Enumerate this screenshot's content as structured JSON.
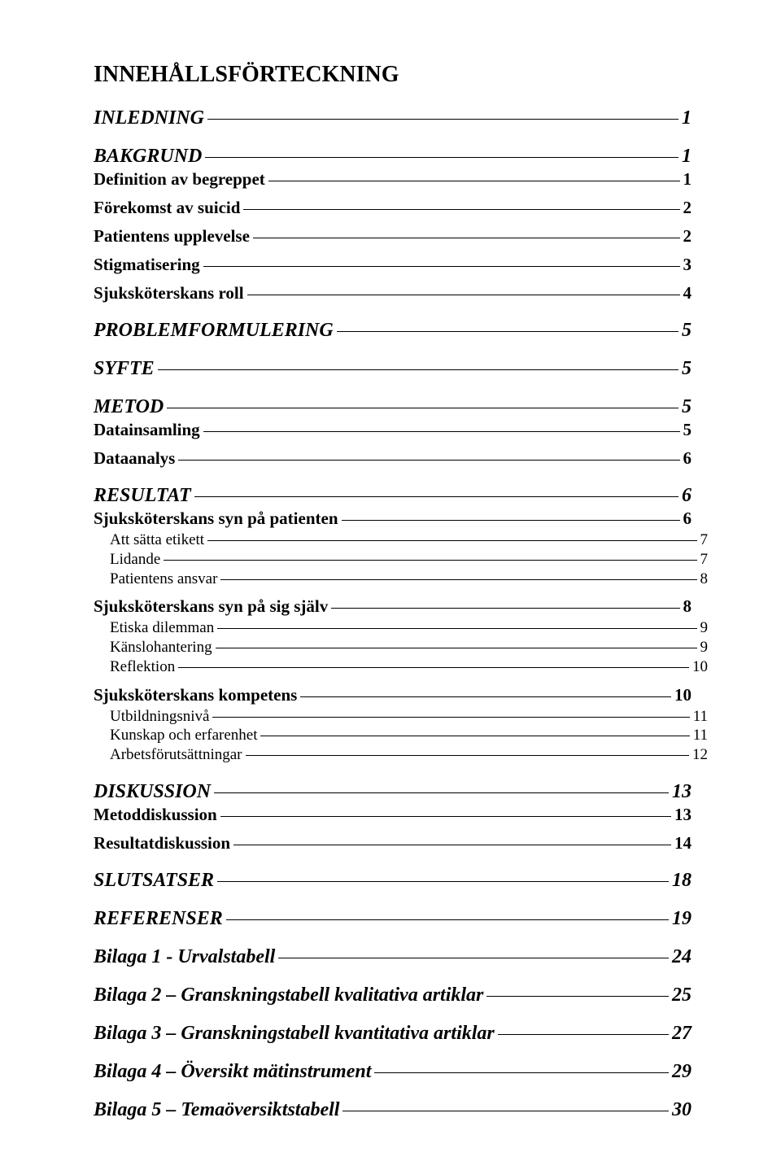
{
  "heading": "INNEHÅLLSFÖRTECKNING",
  "entries": [
    {
      "level": 1,
      "text": "INLEDNING",
      "page": "1"
    },
    {
      "level": 1,
      "text": "BAKGRUND",
      "page": "1"
    },
    {
      "level": 2,
      "text": "Definition av begreppet",
      "page": "1"
    },
    {
      "level": 2,
      "text": "Förekomst av suicid",
      "page": "2"
    },
    {
      "level": 2,
      "text": "Patientens upplevelse",
      "page": "2"
    },
    {
      "level": 2,
      "text": "Stigmatisering",
      "page": "3"
    },
    {
      "level": 2,
      "text": "Sjuksköterskans roll",
      "page": "4"
    },
    {
      "level": 1,
      "text": "PROBLEMFORMULERING",
      "page": "5"
    },
    {
      "level": 1,
      "text": "SYFTE",
      "page": "5"
    },
    {
      "level": 1,
      "text": "METOD",
      "page": "5"
    },
    {
      "level": 2,
      "text": "Datainsamling",
      "page": "5"
    },
    {
      "level": 2,
      "text": "Dataanalys",
      "page": "6"
    },
    {
      "level": 1,
      "text": "RESULTAT",
      "page": "6"
    },
    {
      "level": 2,
      "text": "Sjuksköterskans syn på patienten",
      "page": "6"
    },
    {
      "level": 3,
      "text": "Att sätta etikett",
      "page": "7"
    },
    {
      "level": 3,
      "text": "Lidande",
      "page": "7"
    },
    {
      "level": 3,
      "text": "Patientens ansvar",
      "page": "8"
    },
    {
      "level": 2,
      "text": "Sjuksköterskans syn på sig själv",
      "page": "8"
    },
    {
      "level": 3,
      "text": "Etiska dilemman",
      "page": "9"
    },
    {
      "level": 3,
      "text": "Känslohantering",
      "page": "9"
    },
    {
      "level": 3,
      "text": "Reflektion",
      "page": "10"
    },
    {
      "level": 2,
      "text": "Sjuksköterskans kompetens",
      "page": "10"
    },
    {
      "level": 3,
      "text": "Utbildningsnivå",
      "page": "11"
    },
    {
      "level": 3,
      "text": "Kunskap och erfarenhet",
      "page": "11"
    },
    {
      "level": 3,
      "text": "Arbetsförutsättningar",
      "page": "12"
    },
    {
      "level": 1,
      "text": "DISKUSSION",
      "page": "13"
    },
    {
      "level": 2,
      "text": "Metoddiskussion",
      "page": "13"
    },
    {
      "level": 2,
      "text": "Resultatdiskussion",
      "page": "14"
    },
    {
      "level": 1,
      "text": "SLUTSATSER",
      "page": "18"
    },
    {
      "level": 1,
      "text": "REFERENSER",
      "page": "19"
    },
    {
      "level": 1,
      "text": "Bilaga 1 - Urvalstabell",
      "page": "24"
    },
    {
      "level": 1,
      "text": "Bilaga 2 – Granskningstabell kvalitativa artiklar",
      "page": "25"
    },
    {
      "level": 1,
      "text": "Bilaga 3 – Granskningstabell kvantitativa artiklar",
      "page": "27"
    },
    {
      "level": 1,
      "text": "Bilaga 4 – Översikt mätinstrument",
      "page": "29"
    },
    {
      "level": 1,
      "text": "Bilaga 5 – Temaöversiktstabell",
      "page": "30"
    }
  ]
}
